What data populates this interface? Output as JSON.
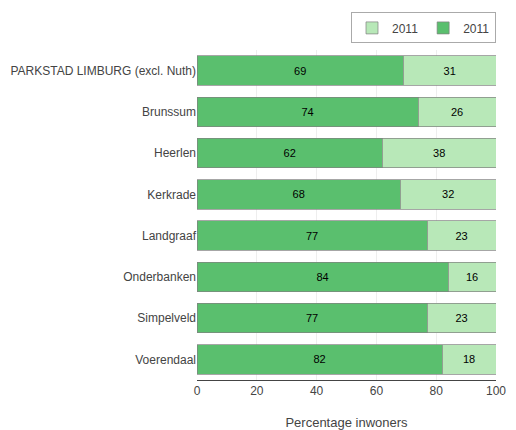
{
  "chart_data": {
    "type": "bar",
    "orientation": "horizontal",
    "stacked": true,
    "categories": [
      "PARKSTAD LIMBURG (excl. Nuth)",
      "Brunssum",
      "Heerlen",
      "Kerkrade",
      "Landgraaf",
      "Onderbanken",
      "Simpelveld",
      "Voerendaal"
    ],
    "series": [
      {
        "name": "2011",
        "color": "#5abf6e",
        "values": [
          69,
          74,
          62,
          68,
          77,
          84,
          77,
          82
        ]
      },
      {
        "name": "2011",
        "color": "#b8e8b8",
        "values": [
          31,
          26,
          38,
          32,
          23,
          16,
          23,
          18
        ]
      }
    ],
    "xlabel": "Percentage inwoners",
    "xlim": [
      0,
      100
    ],
    "xticks": [
      0,
      20,
      40,
      60,
      80,
      100
    ],
    "grid": true,
    "legend": "upper right",
    "data_labels": true
  }
}
